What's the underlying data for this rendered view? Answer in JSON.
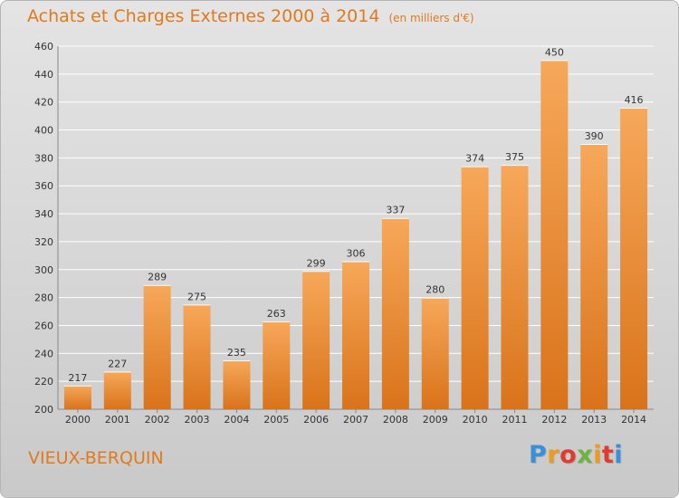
{
  "title": "Achats et Charges Externes 2000 à 2014",
  "subtitle": "(en milliers d'€)",
  "place": "VIEUX-BERQUIN",
  "logo": {
    "text": "Proxiti",
    "letters": [
      {
        "ch": "P",
        "color": "#3a8fd6"
      },
      {
        "ch": "r",
        "color": "#f09a1a"
      },
      {
        "ch": "o",
        "color": "#e23a2e"
      },
      {
        "ch": "x",
        "color": "#6db33f"
      },
      {
        "ch": "i",
        "color": "#f09a1a"
      },
      {
        "ch": "t",
        "color": "#e23a2e"
      },
      {
        "ch": "i",
        "color": "#3a8fd6"
      }
    ]
  },
  "colors": {
    "accent": "#e07a1c",
    "bar_light": "#f7a85a",
    "bar_dark": "#d9731a",
    "grid": "#ffffff",
    "axis_text": "#333333"
  },
  "chart_data": {
    "type": "bar",
    "title": "Achats et Charges Externes 2000 à 2014",
    "subtitle": "(en milliers d'€)",
    "xlabel": "",
    "ylabel": "",
    "categories": [
      "2000",
      "2001",
      "2002",
      "2003",
      "2004",
      "2005",
      "2006",
      "2007",
      "2008",
      "2009",
      "2010",
      "2011",
      "2012",
      "2013",
      "2014"
    ],
    "values": [
      217,
      227,
      289,
      275,
      235,
      263,
      299,
      306,
      337,
      280,
      374,
      375,
      450,
      390,
      416
    ],
    "ylim": [
      200,
      460
    ],
    "yticks": [
      200,
      220,
      240,
      260,
      280,
      300,
      320,
      340,
      360,
      380,
      400,
      420,
      440,
      460
    ],
    "grid": true,
    "data_labels": true,
    "legend": "none"
  }
}
